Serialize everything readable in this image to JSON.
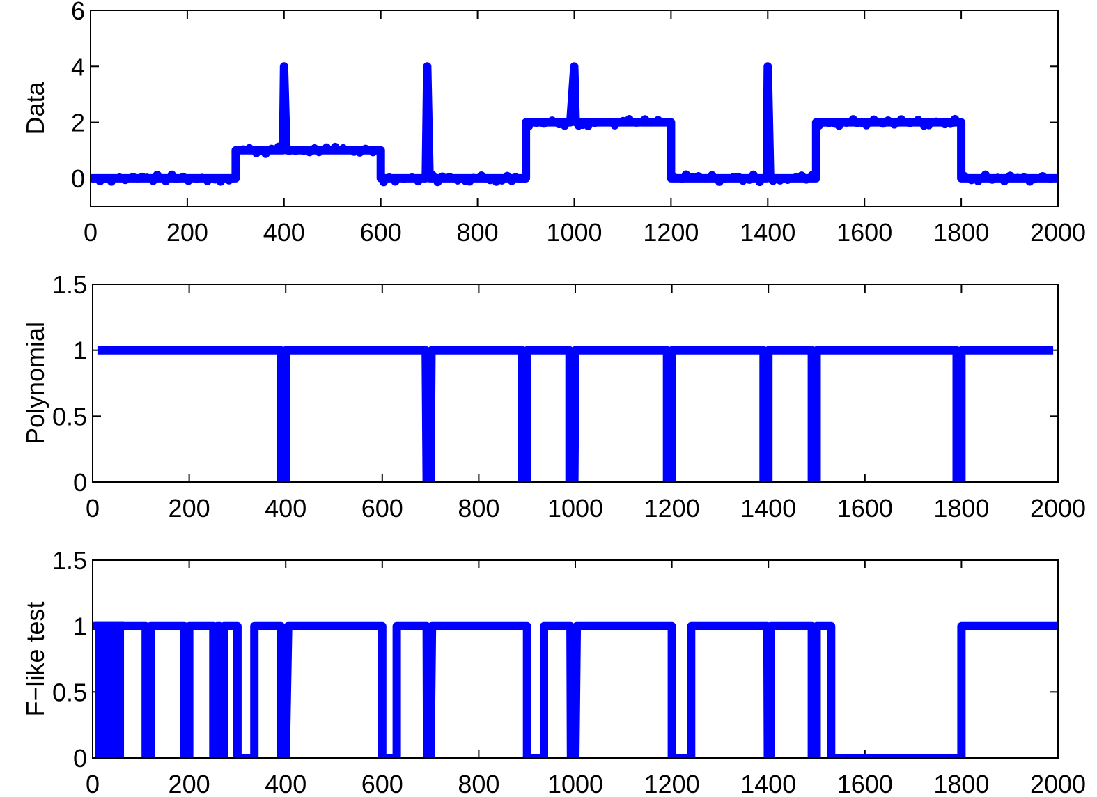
{
  "chart_data": [
    {
      "type": "line",
      "ylabel": "Data",
      "xlim": [
        0,
        2000
      ],
      "ylim": [
        -1,
        6
      ],
      "xticks": [
        "0",
        "200",
        "400",
        "600",
        "800",
        "1000",
        "1200",
        "1400",
        "1600",
        "1800",
        "2000"
      ],
      "yticks": [
        "0",
        "2",
        "4",
        "6"
      ],
      "color": "#0000ff",
      "markers": true,
      "series": [
        {
          "x": [
            0,
            300,
            300,
            398,
            400,
            405,
            600,
            600,
            693,
            696,
            701,
            900,
            900,
            992,
            1000,
            1003,
            1200,
            1200,
            1398,
            1400,
            1405,
            1500,
            1500,
            1800,
            1800,
            2000
          ],
          "y": [
            0,
            0,
            1,
            1,
            4,
            1,
            1,
            0,
            0,
            4,
            0,
            0,
            2,
            2,
            4,
            2,
            2,
            0,
            0,
            4,
            0,
            0,
            2,
            2,
            0,
            0
          ]
        }
      ]
    },
    {
      "type": "line",
      "ylabel": "Polynomial",
      "xlim": [
        0,
        2000
      ],
      "ylim": [
        0,
        1.5
      ],
      "xticks": [
        "0",
        "200",
        "400",
        "600",
        "800",
        "1000",
        "1200",
        "1400",
        "1600",
        "1800",
        "2000"
      ],
      "yticks": [
        "0",
        "0.5",
        "1",
        "1.5"
      ],
      "color": "#0000ff",
      "series": [
        {
          "x": [
            10,
            390,
            390,
            400,
            400,
            690,
            692,
            700,
            702,
            890,
            890,
            900,
            900,
            988,
            988,
            998,
            1000,
            1190,
            1190,
            1200,
            1200,
            1390,
            1390,
            1400,
            1400,
            1490,
            1490,
            1500,
            1500,
            1790,
            1790,
            1800,
            1800,
            1990
          ],
          "y": [
            1,
            1,
            0,
            0,
            1,
            1,
            0,
            0,
            1,
            1,
            0,
            0,
            1,
            1,
            0,
            0,
            1,
            1,
            0,
            0,
            1,
            1,
            0,
            0,
            1,
            1,
            0,
            0,
            1,
            1,
            0,
            0,
            1,
            1
          ]
        }
      ]
    },
    {
      "type": "line",
      "ylabel": "F−like test",
      "xlim": [
        0,
        2000
      ],
      "ylim": [
        0,
        1.5
      ],
      "xticks": [
        "0",
        "200",
        "400",
        "600",
        "800",
        "1000",
        "1200",
        "1400",
        "1600",
        "1800",
        "2000"
      ],
      "yticks": [
        "0",
        "0.5",
        "1",
        "1.5"
      ],
      "color": "#0000ff",
      "dense_block": [
        5,
        65
      ],
      "series": [
        {
          "x": [
            0,
            110,
            110,
            120,
            120,
            190,
            190,
            200,
            200,
            250,
            250,
            258,
            258,
            264,
            264,
            272,
            272,
            300,
            300,
            335,
            335,
            390,
            390,
            400,
            405,
            600,
            600,
            630,
            630,
            692,
            693,
            700,
            703,
            900,
            900,
            935,
            935,
            990,
            991,
            1000,
            1003,
            1200,
            1200,
            1240,
            1240,
            1398,
            1399,
            1405,
            1405,
            1490,
            1490,
            1500,
            1500,
            1530,
            1530,
            1800,
            1800,
            1840,
            1840,
            2000
          ],
          "y": [
            1,
            1,
            0,
            0,
            1,
            1,
            0,
            0,
            1,
            1,
            0,
            0,
            1,
            1,
            0,
            0,
            1,
            1,
            0,
            0,
            1,
            1,
            0,
            0,
            1,
            1,
            0,
            0,
            1,
            1,
            0,
            0,
            1,
            1,
            0,
            0,
            1,
            1,
            0,
            0,
            1,
            1,
            0,
            0,
            1,
            1,
            0,
            0,
            1,
            1,
            0,
            0,
            1,
            1,
            0,
            0,
            1,
            1,
            1,
            1
          ]
        }
      ]
    }
  ]
}
